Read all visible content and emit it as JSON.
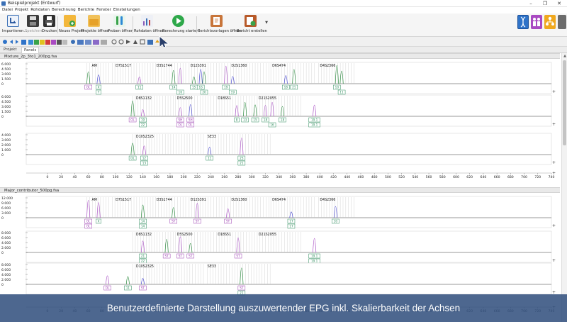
{
  "window": {
    "title": "Beispielprojekt (Entwurf)",
    "controls": [
      "–",
      "❐",
      "✕"
    ]
  },
  "menu": [
    "Datei",
    "Projekt",
    "Rohdaten",
    "Berechnung",
    "Berichte",
    "Fenster",
    "Einstellungen"
  ],
  "ribbon": {
    "import_label": "Importieren...",
    "save_label": "Speichern",
    "print_label": "Drucken",
    "new_project_label": "Neues Projekt",
    "open_projects_label": "Projekte öffnen",
    "open_samples_label": "Proben öffnen",
    "open_rawdata_label": "Rohdaten öffnen",
    "start_calc_label": "Berechnung starten",
    "open_report_templates_label": "Berichtsvorlagen öffnen",
    "create_report_label": "Bericht erstellen"
  },
  "tabs": [
    "Projekt",
    "Panels"
  ],
  "colors": {
    "accent": "#3a6fb5",
    "peak_blue": "#4a4ad0",
    "peak_purple": "#a84fc4",
    "peak_green": "#2b8a3e",
    "label_purple": "#9b3fb0",
    "label_green": "#2a8a5a"
  },
  "samples": [
    {
      "name": "Mixture_2p_3to1_200pg.fsa",
      "panels": [
        {
          "y_ticks": [
            "6.000",
            "4.500",
            "3.000",
            "1.500",
            "0"
          ],
          "loci": [
            "AM",
            "D7S1517",
            "D3S1744",
            "D12S391",
            "D2S1360",
            "D6S474",
            "D4S2366"
          ],
          "allele_labels": [
            {
              "x_bp": 60,
              "text": "OL",
              "row": 0,
              "kind": "purple"
            },
            {
              "x_bp": 75,
              "text": "X",
              "row": 0,
              "kind": "green"
            },
            {
              "x_bp": 75,
              "text": "Y",
              "row": 1,
              "kind": "green"
            },
            {
              "x_bp": 135,
              "text": "11",
              "row": 0,
              "kind": "green"
            },
            {
              "x_bp": 185,
              "text": "14",
              "row": 0,
              "kind": "green"
            },
            {
              "x_bp": 195,
              "text": "16",
              "row": 1,
              "kind": "green"
            },
            {
              "x_bp": 215,
              "text": "15",
              "row": 0,
              "kind": "green"
            },
            {
              "x_bp": 225,
              "text": "16",
              "row": 0,
              "kind": "green"
            },
            {
              "x_bp": 230,
              "text": "20",
              "row": 1,
              "kind": "green"
            },
            {
              "x_bp": 262,
              "text": "19",
              "row": 0,
              "kind": "green"
            },
            {
              "x_bp": 272,
              "text": "19",
              "row": 1,
              "kind": "green"
            },
            {
              "x_bp": 350,
              "text": "18",
              "row": 0,
              "kind": "green"
            },
            {
              "x_bp": 362,
              "text": "21",
              "row": 0,
              "kind": "green"
            },
            {
              "x_bp": 425,
              "text": "10",
              "row": 0,
              "kind": "green"
            },
            {
              "x_bp": 432,
              "text": "11",
              "row": 1,
              "kind": "green"
            }
          ]
        },
        {
          "y_ticks": [
            "6.000",
            "4.500",
            "3.000",
            "1.500",
            "0"
          ],
          "loci": [
            "D8S1132",
            "D5S2500",
            "D18S51",
            "D21S2055"
          ],
          "allele_labels": [
            {
              "x_bp": 125,
              "text": "OL",
              "row": 0,
              "kind": "purple"
            },
            {
              "x_bp": 140,
              "text": "19",
              "row": 0,
              "kind": "green"
            },
            {
              "x_bp": 140,
              "text": "22",
              "row": 1,
              "kind": "green"
            },
            {
              "x_bp": 195,
              "text": "SH",
              "row": 0,
              "kind": "purple"
            },
            {
              "x_bp": 195,
              "text": "OL",
              "row": 1,
              "kind": "purple"
            },
            {
              "x_bp": 210,
              "text": "SH",
              "row": 0,
              "kind": "purple"
            },
            {
              "x_bp": 210,
              "text": "OL",
              "row": 1,
              "kind": "purple"
            },
            {
              "x_bp": 278,
              "text": "8",
              "row": 0,
              "kind": "green"
            },
            {
              "x_bp": 290,
              "text": "13",
              "row": 0,
              "kind": "green"
            },
            {
              "x_bp": 305,
              "text": "15",
              "row": 0,
              "kind": "green"
            },
            {
              "x_bp": 320,
              "text": "18",
              "row": 0,
              "kind": "green"
            },
            {
              "x_bp": 330,
              "text": "16",
              "row": 1,
              "kind": "green"
            },
            {
              "x_bp": 345,
              "text": "18",
              "row": 0,
              "kind": "green"
            },
            {
              "x_bp": 392,
              "text": "19.1",
              "row": 0,
              "kind": "green"
            },
            {
              "x_bp": 392,
              "text": "19.1",
              "row": 1,
              "kind": "green"
            }
          ]
        },
        {
          "y_ticks": [
            "4.000",
            "3.000",
            "2.000",
            "1.000",
            "0"
          ],
          "loci": [
            "D10S2325",
            "SE33"
          ],
          "allele_labels": [
            {
              "x_bp": 125,
              "text": "OL",
              "row": 0,
              "kind": "green"
            },
            {
              "x_bp": 142,
              "text": "12",
              "row": 0,
              "kind": "green"
            },
            {
              "x_bp": 142,
              "text": "13",
              "row": 1,
              "kind": "green"
            },
            {
              "x_bp": 238,
              "text": "11",
              "row": 0,
              "kind": "green"
            },
            {
              "x_bp": 285,
              "text": "25",
              "row": 0,
              "kind": "green"
            },
            {
              "x_bp": 285,
              "text": "21",
              "row": 1,
              "kind": "green"
            }
          ]
        }
      ]
    },
    {
      "name": "Major_contributor_500pg.fsa",
      "panels": [
        {
          "y_ticks": [
            "12.000",
            "9.000",
            "6.000",
            "3.000",
            "0"
          ],
          "loci": [
            "AM",
            "D7S1517",
            "D3S1744",
            "D12S391",
            "D2S1360",
            "D6S474",
            "D4S2366"
          ],
          "allele_labels": [
            {
              "x_bp": 60,
              "text": "OL",
              "row": 0,
              "kind": "purple"
            },
            {
              "x_bp": 60,
              "text": "OL",
              "row": 1,
              "kind": "purple"
            },
            {
              "x_bp": 75,
              "text": "X",
              "row": 0,
              "kind": "green"
            },
            {
              "x_bp": 140,
              "text": "14",
              "row": 0,
              "kind": "green"
            },
            {
              "x_bp": 140,
              "text": "14",
              "row": 1,
              "kind": "green"
            },
            {
              "x_bp": 185,
              "text": "ST",
              "row": 0,
              "kind": "purple"
            },
            {
              "x_bp": 220,
              "text": "ST",
              "row": 0,
              "kind": "purple"
            },
            {
              "x_bp": 265,
              "text": "ST",
              "row": 0,
              "kind": "purple"
            },
            {
              "x_bp": 358,
              "text": "17",
              "row": 0,
              "kind": "green"
            },
            {
              "x_bp": 358,
              "text": "17",
              "row": 1,
              "kind": "green"
            },
            {
              "x_bp": 423,
              "text": "10",
              "row": 0,
              "kind": "green"
            }
          ]
        },
        {
          "y_ticks": [
            "8.000",
            "6.000",
            "4.000",
            "2.000",
            "0"
          ],
          "loci": [
            "D8S1132",
            "D5S2500",
            "D18S51",
            "D21S2055"
          ],
          "allele_labels": [
            {
              "x_bp": 140,
              "text": "21",
              "row": 0,
              "kind": "green"
            },
            {
              "x_bp": 140,
              "text": "22",
              "row": 1,
              "kind": "green"
            },
            {
              "x_bp": 175,
              "text": "ST",
              "row": 0,
              "kind": "purple"
            },
            {
              "x_bp": 195,
              "text": "ST",
              "row": 0,
              "kind": "purple"
            },
            {
              "x_bp": 210,
              "text": "ST",
              "row": 0,
              "kind": "purple"
            },
            {
              "x_bp": 280,
              "text": "ST",
              "row": 0,
              "kind": "purple"
            },
            {
              "x_bp": 392,
              "text": "19.1",
              "row": 0,
              "kind": "green"
            },
            {
              "x_bp": 392,
              "text": "19.1",
              "row": 1,
              "kind": "green"
            }
          ]
        },
        {
          "y_ticks": [
            "8.000",
            "6.000",
            "4.000",
            "2.000",
            "0"
          ],
          "loci": [
            "D10S2325",
            "SE33"
          ],
          "allele_labels": [
            {
              "x_bp": 88,
              "text": "OL",
              "row": 0,
              "kind": "purple"
            },
            {
              "x_bp": 118,
              "text": "11",
              "row": 0,
              "kind": "green"
            },
            {
              "x_bp": 140,
              "text": "ST",
              "row": 0,
              "kind": "purple"
            },
            {
              "x_bp": 285,
              "text": "ST",
              "row": 0,
              "kind": "purple"
            },
            {
              "x_bp": 285,
              "text": "21",
              "row": 1,
              "kind": "green"
            }
          ]
        }
      ]
    }
  ],
  "x_axis": {
    "ticks": [
      "0",
      "20",
      "40",
      "60",
      "80",
      "100",
      "120",
      "140",
      "160",
      "180",
      "200",
      "220",
      "240",
      "260",
      "280",
      "300",
      "320",
      "340",
      "360",
      "380",
      "400",
      "420",
      "440",
      "460",
      "480",
      "500",
      "520",
      "540",
      "560",
      "580",
      "600",
      "620",
      "640",
      "660",
      "680",
      "700",
      "720",
      "740"
    ],
    "min": 0,
    "max": 740
  },
  "caption": "Benutzerdefinierte Darstellung auszuwertender EPG inkl. Skalierbarkeit der Achsen"
}
